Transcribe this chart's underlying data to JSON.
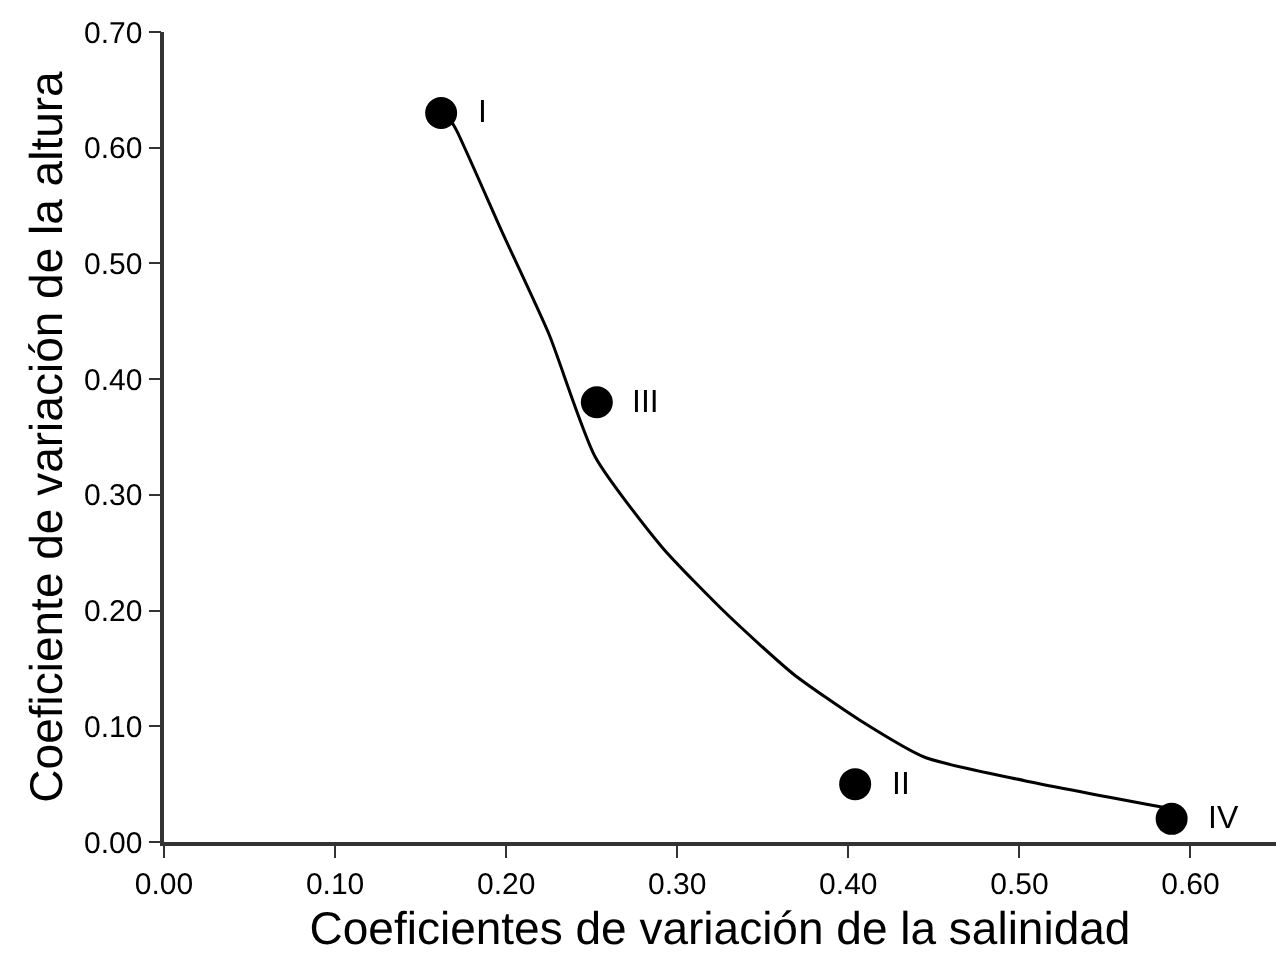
{
  "chart_data": {
    "type": "scatter",
    "xlabel": "Coeficientes de variación de la salinidad",
    "ylabel": "Coeficiente de variación de la altura",
    "xlim": [
      0,
      0.65
    ],
    "xticks": [
      {
        "value": 0,
        "label": "0.00"
      },
      {
        "value": 0.1,
        "label": "0.10"
      },
      {
        "value": 0.2,
        "label": "0.20"
      },
      {
        "value": 0.3,
        "label": "0.30"
      },
      {
        "value": 0.4,
        "label": "0.40"
      },
      {
        "value": 0.5,
        "label": "0.50"
      },
      {
        "value": 0.6,
        "label": "0.60"
      }
    ],
    "ylim": [
      0,
      0.7
    ],
    "yticks": [
      {
        "value": 0,
        "label": "0.00"
      },
      {
        "value": 0.1,
        "label": "0.10"
      },
      {
        "value": 0.2,
        "label": "0.20"
      },
      {
        "value": 0.3,
        "label": "0.30"
      },
      {
        "value": 0.4,
        "label": "0.40"
      },
      {
        "value": 0.5,
        "label": "0.50"
      },
      {
        "value": 0.6,
        "label": "0.60"
      },
      {
        "value": 0.7,
        "label": "0.70"
      }
    ],
    "marker": "circle",
    "series": [
      {
        "type": "line",
        "color": "#000000",
        "line_style": "solid",
        "marker": "none",
        "x": [
          0.165,
          0.171,
          0.198,
          0.225,
          0.252,
          0.291,
          0.329,
          0.368,
          0.407,
          0.445,
          0.503,
          0.584
        ],
        "values": [
          0.63,
          0.615,
          0.526,
          0.439,
          0.333,
          0.255,
          0.197,
          0.145,
          0.105,
          0.073,
          0.053,
          0.03
        ]
      },
      {
        "color": "#000000",
        "x": [
          0.162,
          0.253,
          0.404,
          0.589
        ],
        "values": [
          0.63,
          0.38,
          0.05,
          0.02
        ]
      }
    ],
    "annotations": [
      {
        "text": "I",
        "x": 0.162,
        "y": 0.63
      },
      {
        "text": "III",
        "x": 0.253,
        "y": 0.38
      },
      {
        "text": "II",
        "x": 0.404,
        "y": 0.05
      },
      {
        "text": "IV",
        "x": 0.589,
        "y": 0.02
      }
    ]
  }
}
